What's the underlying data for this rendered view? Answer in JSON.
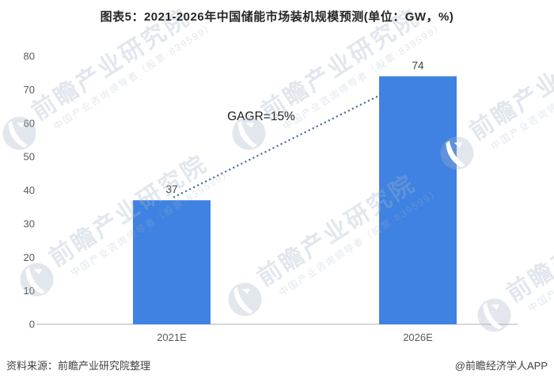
{
  "title": "图表5：2021-2026年中国储能市场装机规模预测(单位：GW，%)",
  "chart_data": {
    "type": "bar",
    "categories": [
      "2021E",
      "2026E"
    ],
    "values": [
      37,
      74
    ],
    "unit": "GW",
    "title": "图表5：2021-2026年中国储能市场装机规模预测(单位：GW，%)",
    "xlabel": "",
    "ylabel": "",
    "ylim": [
      0,
      80
    ],
    "yticks": [
      0,
      10,
      20,
      30,
      40,
      50,
      60,
      70,
      80
    ],
    "grid": false,
    "annotation": "GAGR=15%",
    "trend_line": "dotted",
    "bar_color": "#3F82E1",
    "trend_color": "#51719f",
    "axis_color": "#d8d8d8"
  },
  "footer": {
    "source": "资料来源：前瞻产业研究院整理",
    "credit": "@前瞻经济学人APP"
  },
  "watermark": {
    "brand": "前瞻产业研究院",
    "tagline": "中国产业咨询领导者（股票·839599）",
    "logo": "qianzhan-logo"
  }
}
